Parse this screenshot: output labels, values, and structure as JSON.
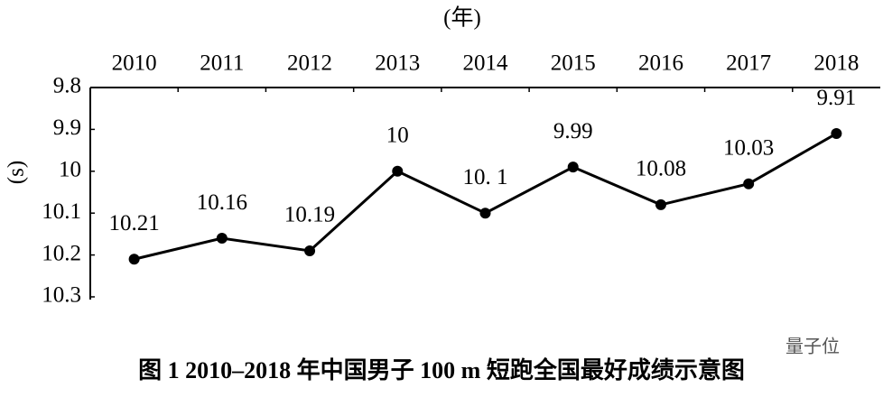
{
  "chart_data": {
    "type": "line",
    "title": "图 1  2010–2018 年中国男子 100 m 短跑全国最好成绩示意图",
    "x_label": "(年)",
    "y_label": "(s)",
    "watermark": "量子位",
    "categories": [
      "2010",
      "2011",
      "2012",
      "2013",
      "2014",
      "2015",
      "2016",
      "2017",
      "2018"
    ],
    "values": [
      10.21,
      10.16,
      10.19,
      10,
      10.1,
      9.99,
      10.08,
      10.03,
      9.91
    ],
    "value_labels": [
      "10.21",
      "10.16",
      "10.19",
      "10",
      "10. 1",
      "9.99",
      "10.08",
      "10.03",
      "9.91"
    ],
    "color": "#000000",
    "ylim": [
      10.3,
      9.8
    ],
    "yticks": [
      9.8,
      9.9,
      10,
      10.1,
      10.2,
      10.3
    ],
    "grid": false
  }
}
